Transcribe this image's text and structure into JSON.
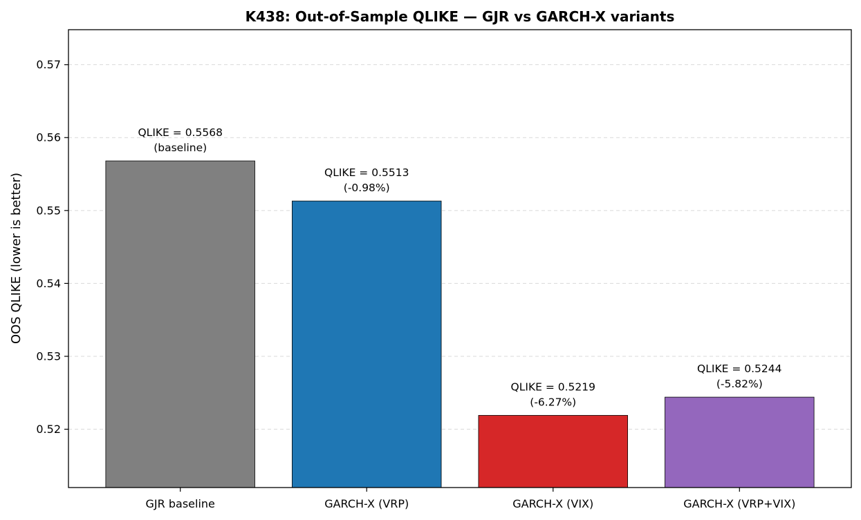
{
  "chart_data": {
    "type": "bar",
    "title": "K438: Out-of-Sample QLIKE — GJR vs GARCH-X variants",
    "xlabel": "",
    "ylabel": "OOS QLIKE (lower is better)",
    "categories": [
      "GJR baseline",
      "GARCH-X (VRP)",
      "GARCH-X (VIX)",
      "GARCH-X (VRP+VIX)"
    ],
    "values": [
      0.5568,
      0.5513,
      0.5219,
      0.5244
    ],
    "colors": [
      "#808080",
      "#1f77b4",
      "#d62728",
      "#9467bd"
    ],
    "annotations": [
      [
        "QLIKE = 0.5568",
        "(baseline)"
      ],
      [
        "QLIKE = 0.5513",
        "(-0.98%)"
      ],
      [
        "QLIKE = 0.5219",
        "(-6.27%)"
      ],
      [
        "QLIKE = 0.5244",
        "(-5.82%)"
      ]
    ],
    "ylim": [
      0.512,
      0.5748
    ],
    "yticks": [
      0.52,
      0.53,
      0.54,
      0.55,
      0.56,
      0.57
    ],
    "ytick_labels": [
      "0.52",
      "0.53",
      "0.54",
      "0.55",
      "0.56",
      "0.57"
    ],
    "grid": "y-dashed",
    "legend": "none"
  }
}
